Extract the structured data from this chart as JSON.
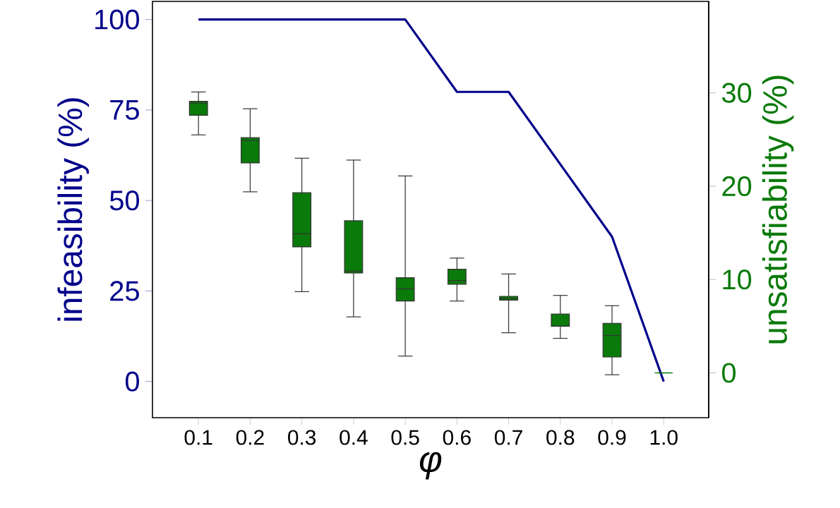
{
  "chart_data": {
    "type": "box",
    "categories": [
      "0.1",
      "0.2",
      "0.3",
      "0.4",
      "0.5",
      "0.6",
      "0.7",
      "0.8",
      "0.9",
      "1.0"
    ],
    "xlabel": "φ",
    "ylabel": "infeasibility (%)",
    "y2label": "unsatisfiability (%)",
    "ylim": [
      -10,
      105
    ],
    "yticks": [
      0,
      25,
      50,
      75,
      100
    ],
    "y2lim": [
      -4.8,
      39.8
    ],
    "y2ticks": [
      0,
      10,
      20,
      30
    ],
    "series": [
      {
        "type": "line",
        "color": "#00008b",
        "values": [
          100,
          100,
          100,
          100,
          100,
          80,
          80,
          60,
          40,
          0
        ]
      },
      {
        "axis": "y2",
        "color": "#0a7a0a",
        "boxes": [
          {
            "low": 25.5,
            "q1": 27.6,
            "median": 28.9,
            "q3": 29.1,
            "high": 30.1
          },
          {
            "low": 19.4,
            "q1": 22.5,
            "median": 24.9,
            "q3": 25.2,
            "high": 28.3
          },
          {
            "low": 8.7,
            "q1": 13.5,
            "median": 14.9,
            "q3": 19.3,
            "high": 23.0
          },
          {
            "low": 6.0,
            "q1": 10.7,
            "median": 10.9,
            "q3": 16.3,
            "high": 22.8
          },
          {
            "low": 1.8,
            "q1": 7.7,
            "median": 9.0,
            "q3": 10.2,
            "high": 21.1
          },
          {
            "low": 7.7,
            "q1": 9.5,
            "median": 9.9,
            "q3": 11.1,
            "high": 12.3
          },
          {
            "low": 4.3,
            "q1": 7.8,
            "median": 8.0,
            "q3": 8.2,
            "high": 10.6
          },
          {
            "low": 3.7,
            "q1": 5.0,
            "median": 5.0,
            "q3": 6.3,
            "high": 8.3
          },
          {
            "low": -0.2,
            "q1": 1.7,
            "median": 4.0,
            "q3": 5.3,
            "high": 7.2
          },
          {
            "low": 0,
            "q1": 0,
            "median": 0,
            "q3": 0,
            "high": 0
          }
        ]
      }
    ]
  }
}
